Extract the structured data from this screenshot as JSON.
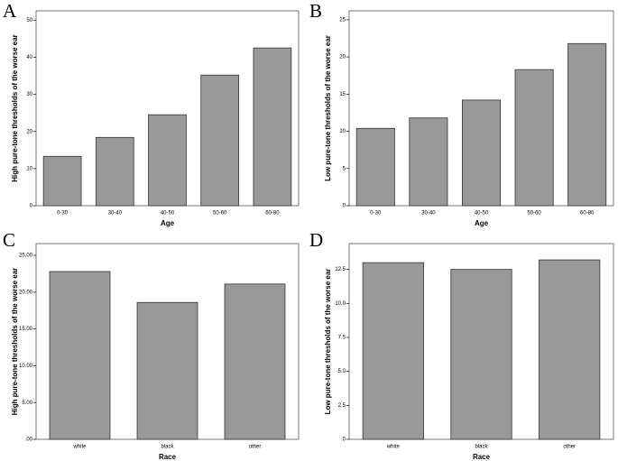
{
  "chart_data": [
    {
      "type": "bar",
      "panel": "A",
      "ylabel": "High pure-tone thresholds of the worse ear",
      "xlabel": "Age",
      "categories": [
        "0-30",
        "30-40",
        "40-50",
        "50-60",
        "60-80"
      ],
      "values": [
        13.3,
        18.4,
        24.5,
        35.2,
        42.5
      ],
      "color": "#999999",
      "ylim": [
        0,
        52.5
      ],
      "yticks": [
        0,
        10,
        20,
        30,
        40,
        50
      ]
    },
    {
      "type": "bar",
      "panel": "B",
      "ylabel": "Low pure-tone thresholds of the worse ear",
      "xlabel": "Age",
      "categories": [
        "0-30",
        "30-40",
        "40-50",
        "50-60",
        "60-80"
      ],
      "values": [
        10.4,
        11.8,
        14.2,
        18.3,
        21.8
      ],
      "color": "#999999",
      "ylim": [
        0,
        26.2
      ],
      "yticks": [
        0,
        5,
        10,
        15,
        20,
        25
      ]
    },
    {
      "type": "bar",
      "panel": "C",
      "ylabel": "High pure-tone thresholds of the worse ear",
      "xlabel": "Race",
      "categories": [
        "white",
        "black",
        "other"
      ],
      "values": [
        22.8,
        18.6,
        21.1
      ],
      "color": "#999999",
      "ylim": [
        0,
        26.6
      ],
      "yticks": [
        {
          "value": 0,
          "label": ".00"
        },
        {
          "value": 5,
          "label": "5.00"
        },
        {
          "value": 10,
          "label": "10.00"
        },
        {
          "value": 15,
          "label": "15.00"
        },
        {
          "value": 20,
          "label": "20.00"
        },
        {
          "value": 25,
          "label": "25.00"
        }
      ]
    },
    {
      "type": "bar",
      "panel": "D",
      "ylabel": "Low pure-tone thresholds of the worse ear",
      "xlabel": "Race",
      "categories": [
        "white",
        "black",
        "other"
      ],
      "values": [
        13.0,
        12.5,
        13.2
      ],
      "color": "#999999",
      "ylim": [
        0,
        14.4
      ],
      "yticks": [
        {
          "value": 0,
          "label": ".0"
        },
        2.5,
        {
          "value": 5,
          "label": "5.0"
        },
        7.5,
        {
          "value": 10,
          "label": "10.0"
        },
        12.5
      ]
    }
  ]
}
